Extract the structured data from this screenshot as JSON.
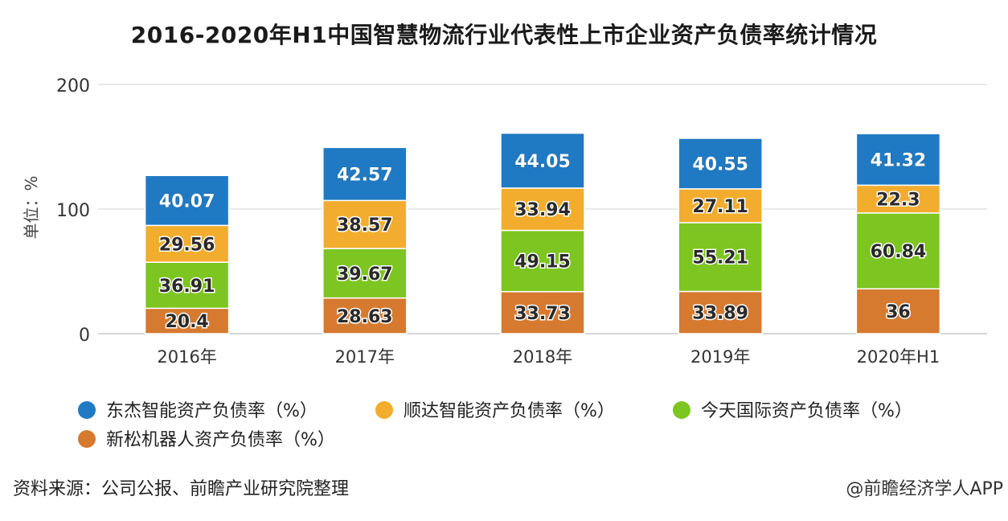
{
  "title": "2016-2020年H1中国智慧物流行业代表性上市企业资产负债率统计情况",
  "source": "资料来源：公司公报、前瞻产业研究院整理",
  "credit": "@前瞻经济学人APP",
  "chart_data": {
    "type": "bar",
    "stacked": true,
    "title": "2016-2020年H1中国智慧物流行业代表性上市企业资产负债率统计情况",
    "ylabel": "单位：%",
    "ylim": [
      0,
      200
    ],
    "yticks": [
      "0",
      "100",
      "200"
    ],
    "grid": true,
    "legend_position": "bottom",
    "categories": [
      "2016年",
      "2017年",
      "2018年",
      "2019年",
      "2020年H1"
    ],
    "series": [
      {
        "name": "新松机器人资产负债率（%）",
        "color": "#d67a30",
        "values": [
          20.4,
          28.63,
          33.73,
          33.89,
          36
        ],
        "labels": [
          "20.4",
          "28.63",
          "33.73",
          "33.89",
          "36"
        ]
      },
      {
        "name": "今天国际资产负债率（%）",
        "color": "#7dc520",
        "values": [
          36.91,
          39.67,
          49.15,
          55.21,
          60.84
        ],
        "labels": [
          "36.91",
          "39.67",
          "49.15",
          "55.21",
          "60.84"
        ]
      },
      {
        "name": "顺达智能资产负债率（%）",
        "color": "#f2ad2e",
        "values": [
          29.56,
          38.57,
          33.94,
          27.11,
          22.3
        ],
        "labels": [
          "29.56",
          "38.57",
          "33.94",
          "27.11",
          "22.3"
        ]
      },
      {
        "name": "东杰智能资产负债率（%）",
        "color": "#1f7ac3",
        "values": [
          40.07,
          42.57,
          44.05,
          40.55,
          41.32
        ],
        "labels": [
          "40.07",
          "42.57",
          "44.05",
          "40.55",
          "41.32"
        ]
      }
    ],
    "legend_order": [
      3,
      2,
      1,
      0
    ]
  }
}
